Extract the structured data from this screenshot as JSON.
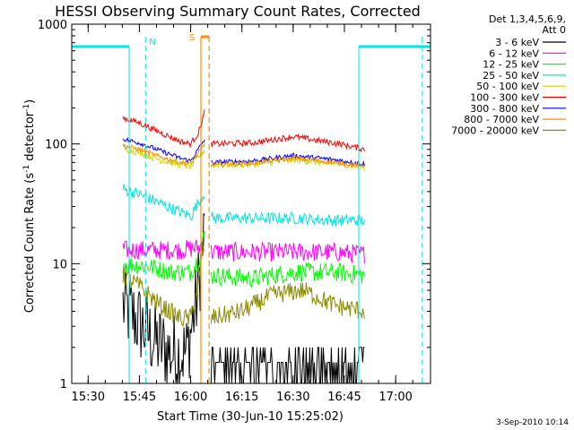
{
  "chart_data": {
    "type": "line",
    "title": "HESSI Observing Summary Count Rates, Corrected",
    "xlabel": "Start Time (30-Jun-10 15:25:02)",
    "ylabel_main": "Corrected Count Rate (s",
    "ylabel_sup1": "-1",
    "ylabel_mid": " detector",
    "ylabel_sup2": "-1",
    "ylabel_end": ")",
    "yscale": "log",
    "ylim": [
      1,
      1000
    ],
    "xlim_minutes": [
      15.42,
      17.17
    ],
    "y_tick_labels": [
      "1",
      "10",
      "100",
      "1000"
    ],
    "y_tick_values": [
      1,
      10,
      100,
      1000
    ],
    "x_tick_labels": [
      "15:30",
      "15:45",
      "16:00",
      "16:15",
      "16:30",
      "16:45",
      "17:00"
    ],
    "x_tick_values": [
      15.5,
      15.75,
      16.0,
      16.25,
      16.5,
      16.75,
      17.0
    ],
    "legend_header": [
      "Det 1,3,4,5,6,9,",
      "Att 0"
    ],
    "legend_position": "right",
    "footer_date": "3-Sep-2010 10:14",
    "annotations": {
      "night_label": "N",
      "saa_label": "S",
      "night_color": "#00e5e5",
      "saa_color": "#ff8c00",
      "night_start_end": [
        15.42,
        15.7
      ],
      "night_start_end_2": [
        16.82,
        17.17
      ],
      "night_dashes": [
        15.78,
        17.13
      ],
      "night_edges": [
        15.7,
        16.82
      ],
      "saa_dashes": [
        16.05,
        16.09
      ],
      "night_level": 650
    },
    "series": [
      {
        "name": "3 - 6 keV",
        "color": "#000000",
        "noise": 0.35,
        "seg1": [
          [
            15.67,
            4.5
          ],
          [
            15.75,
            3.2
          ],
          [
            15.82,
            2.3
          ],
          [
            15.9,
            1.8
          ],
          [
            15.98,
            1.8
          ],
          [
            16.03,
            5
          ],
          [
            16.07,
            20
          ]
        ],
        "seg2": [
          [
            16.1,
            1.6
          ],
          [
            16.3,
            1.5
          ],
          [
            16.5,
            1.7
          ],
          [
            16.65,
            1.5
          ],
          [
            16.85,
            1.4
          ]
        ]
      },
      {
        "name": "6 - 12 keV",
        "color": "#ff00ff",
        "noise": 0.08,
        "seg1": [
          [
            15.67,
            13
          ],
          [
            15.8,
            13
          ],
          [
            15.95,
            13
          ],
          [
            16.02,
            13.5
          ],
          [
            16.07,
            14
          ]
        ],
        "seg2": [
          [
            16.1,
            12.5
          ],
          [
            16.3,
            12.5
          ],
          [
            16.5,
            12.5
          ],
          [
            16.7,
            12.5
          ],
          [
            16.85,
            12
          ]
        ]
      },
      {
        "name": "12 - 25 keV",
        "color": "#00ff00",
        "noise": 0.08,
        "seg1": [
          [
            15.67,
            10
          ],
          [
            15.8,
            9.5
          ],
          [
            15.9,
            8.5
          ],
          [
            16.0,
            8.5
          ],
          [
            16.04,
            11
          ],
          [
            16.07,
            18
          ]
        ],
        "seg2": [
          [
            16.1,
            8
          ],
          [
            16.3,
            7.5
          ],
          [
            16.5,
            8.5
          ],
          [
            16.7,
            8.5
          ],
          [
            16.85,
            8
          ]
        ]
      },
      {
        "name": "25 - 50 keV",
        "color": "#00e5e5",
        "noise": 0.05,
        "seg1": [
          [
            15.67,
            42
          ],
          [
            15.75,
            38
          ],
          [
            15.85,
            32
          ],
          [
            15.95,
            27
          ],
          [
            16.0,
            25
          ],
          [
            16.07,
            40
          ]
        ],
        "seg2": [
          [
            16.1,
            24
          ],
          [
            16.3,
            24
          ],
          [
            16.5,
            24
          ],
          [
            16.7,
            23
          ],
          [
            16.85,
            23
          ]
        ]
      },
      {
        "name": "50 - 100 keV",
        "color": "#d4d400",
        "noise": 0.03,
        "seg1": [
          [
            15.67,
            92
          ],
          [
            15.75,
            85
          ],
          [
            15.85,
            74
          ],
          [
            15.95,
            67
          ],
          [
            16.0,
            65
          ],
          [
            16.07,
            90
          ]
        ],
        "seg2": [
          [
            16.1,
            67
          ],
          [
            16.3,
            68
          ],
          [
            16.5,
            74
          ],
          [
            16.7,
            69
          ],
          [
            16.85,
            64
          ]
        ]
      },
      {
        "name": "100 - 300 keV",
        "color": "#ff0000",
        "noise": 0.025,
        "seg1": [
          [
            15.67,
            165
          ],
          [
            15.75,
            150
          ],
          [
            15.85,
            125
          ],
          [
            15.95,
            105
          ],
          [
            16.0,
            100
          ],
          [
            16.04,
            125
          ],
          [
            16.07,
            190
          ]
        ],
        "seg2": [
          [
            16.1,
            100
          ],
          [
            16.3,
            102
          ],
          [
            16.5,
            115
          ],
          [
            16.7,
            102
          ],
          [
            16.85,
            90
          ]
        ]
      },
      {
        "name": "300 - 800 keV",
        "color": "#0000ff",
        "noise": 0.02,
        "seg1": [
          [
            15.67,
            110
          ],
          [
            15.75,
            102
          ],
          [
            15.85,
            88
          ],
          [
            15.95,
            76
          ],
          [
            16.0,
            72
          ],
          [
            16.07,
            110
          ]
        ],
        "seg2": [
          [
            16.1,
            70
          ],
          [
            16.3,
            72
          ],
          [
            16.5,
            80
          ],
          [
            16.7,
            74
          ],
          [
            16.85,
            68
          ]
        ]
      },
      {
        "name": "800 - 7000 keV",
        "color": "#ff8c00",
        "noise": 0.02,
        "seg1": [
          [
            15.67,
            97
          ],
          [
            15.75,
            90
          ],
          [
            15.85,
            78
          ],
          [
            15.95,
            70
          ],
          [
            16.0,
            68
          ],
          [
            16.07,
            100
          ]
        ],
        "seg2": [
          [
            16.1,
            67
          ],
          [
            16.3,
            69
          ],
          [
            16.5,
            76
          ],
          [
            16.7,
            70
          ],
          [
            16.85,
            66
          ]
        ]
      },
      {
        "name": "7000 - 20000 keV",
        "color": "#8b8b00",
        "noise": 0.08,
        "seg1": [
          [
            15.67,
            8
          ],
          [
            15.75,
            6.5
          ],
          [
            15.85,
            4.5
          ],
          [
            15.95,
            3.5
          ],
          [
            16.0,
            3.5
          ],
          [
            16.04,
            7
          ],
          [
            16.07,
            17
          ]
        ],
        "seg2": [
          [
            16.1,
            3.5
          ],
          [
            16.25,
            4
          ],
          [
            16.4,
            5.5
          ],
          [
            16.55,
            6
          ],
          [
            16.7,
            4.5
          ],
          [
            16.85,
            4
          ]
        ]
      }
    ]
  }
}
